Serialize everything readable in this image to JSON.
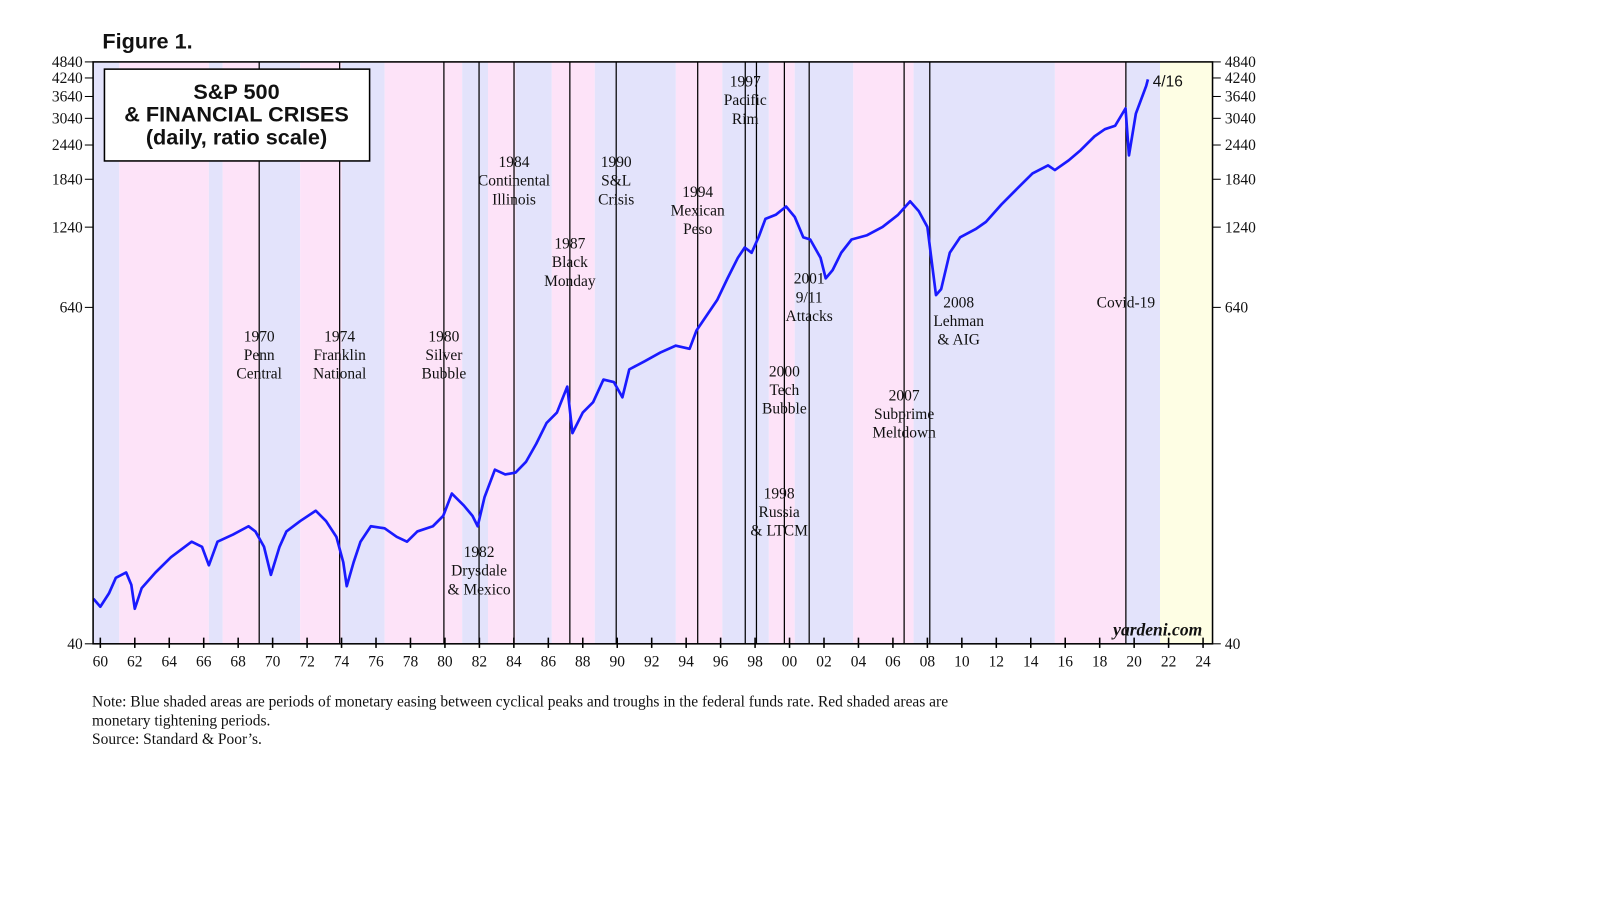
{
  "chart_data": {
    "type": "line",
    "figure_label": "Figure 1.",
    "title": [
      "S&P 500",
      "& FINANCIAL CRISES",
      "(daily, ratio scale)"
    ],
    "end_label": "4/16",
    "watermark": "yardeni.com",
    "note": [
      "Note: Blue shaded areas are periods of monetary easing between cyclical peaks and troughs in the federal funds rate. Red shaded areas are",
      "monetary tightening periods."
    ],
    "source": "Source: Standard & Poor’s.",
    "log_scale": true,
    "xlim": [
      1959.58,
      2024.55
    ],
    "ylim": [
      40,
      4840
    ],
    "yticks": [
      40,
      640,
      1240,
      1840,
      2440,
      3040,
      3640,
      4240,
      4840
    ],
    "xticks": [
      {
        "value": 1960,
        "label": "60"
      },
      {
        "value": 1962,
        "label": "62"
      },
      {
        "value": 1964,
        "label": "64"
      },
      {
        "value": 1966,
        "label": "66"
      },
      {
        "value": 1968,
        "label": "68"
      },
      {
        "value": 1970,
        "label": "70"
      },
      {
        "value": 1972,
        "label": "72"
      },
      {
        "value": 1974,
        "label": "74"
      },
      {
        "value": 1976,
        "label": "76"
      },
      {
        "value": 1978,
        "label": "78"
      },
      {
        "value": 1980,
        "label": "80"
      },
      {
        "value": 1982,
        "label": "82"
      },
      {
        "value": 1984,
        "label": "84"
      },
      {
        "value": 1986,
        "label": "86"
      },
      {
        "value": 1988,
        "label": "88"
      },
      {
        "value": 1990,
        "label": "90"
      },
      {
        "value": 1992,
        "label": "92"
      },
      {
        "value": 1994,
        "label": "94"
      },
      {
        "value": 1996,
        "label": "96"
      },
      {
        "value": 1998,
        "label": "98"
      },
      {
        "value": 2000,
        "label": "00"
      },
      {
        "value": 2002,
        "label": "02"
      },
      {
        "value": 2004,
        "label": "04"
      },
      {
        "value": 2006,
        "label": "06"
      },
      {
        "value": 2008,
        "label": "08"
      },
      {
        "value": 2010,
        "label": "10"
      },
      {
        "value": 2012,
        "label": "12"
      },
      {
        "value": 2014,
        "label": "14"
      },
      {
        "value": 2016,
        "label": "16"
      },
      {
        "value": 2018,
        "label": "18"
      },
      {
        "value": 2020,
        "label": "20"
      },
      {
        "value": 2022,
        "label": "22"
      },
      {
        "value": 2024,
        "label": "24"
      }
    ],
    "shading": [
      {
        "start": 1959.58,
        "end": 1961.1,
        "color": "#e3e3fb"
      },
      {
        "start": 1961.1,
        "end": 1966.3,
        "color": "#fde3f8"
      },
      {
        "start": 1966.3,
        "end": 1967.1,
        "color": "#e3e3fb"
      },
      {
        "start": 1967.1,
        "end": 1969.2,
        "color": "#fde3f8"
      },
      {
        "start": 1969.2,
        "end": 1971.6,
        "color": "#e3e3fb"
      },
      {
        "start": 1971.6,
        "end": 1974.0,
        "color": "#fde3f8"
      },
      {
        "start": 1974.0,
        "end": 1976.5,
        "color": "#e3e3fb"
      },
      {
        "start": 1976.5,
        "end": 1981.0,
        "color": "#fde3f8"
      },
      {
        "start": 1981.0,
        "end": 1982.5,
        "color": "#e3e3fb"
      },
      {
        "start": 1982.5,
        "end": 1984.1,
        "color": "#fde3f8"
      },
      {
        "start": 1984.1,
        "end": 1986.2,
        "color": "#e3e3fb"
      },
      {
        "start": 1986.2,
        "end": 1988.7,
        "color": "#fde3f8"
      },
      {
        "start": 1988.7,
        "end": 1993.4,
        "color": "#e3e3fb"
      },
      {
        "start": 1993.4,
        "end": 1996.1,
        "color": "#fde3f8"
      },
      {
        "start": 1996.1,
        "end": 1998.8,
        "color": "#e3e3fb"
      },
      {
        "start": 1998.8,
        "end": 2000.3,
        "color": "#fde3f8"
      },
      {
        "start": 2000.3,
        "end": 2003.7,
        "color": "#e3e3fb"
      },
      {
        "start": 2003.7,
        "end": 2007.2,
        "color": "#fde3f8"
      },
      {
        "start": 2007.2,
        "end": 2015.4,
        "color": "#e3e3fb"
      },
      {
        "start": 2015.4,
        "end": 2019.5,
        "color": "#fde3f8"
      },
      {
        "start": 2019.5,
        "end": 2021.5,
        "color": "#e3e3fb"
      },
      {
        "start": 2021.5,
        "end": 2024.55,
        "color": "#fefee4"
      }
    ],
    "annotations": [
      {
        "x": 1969.22,
        "text": [
          "1970",
          "Penn",
          "Central"
        ]
      },
      {
        "x": 1973.89,
        "text": [
          "1974",
          "Franklin",
          "National"
        ]
      },
      {
        "x": 1979.94,
        "text": [
          "1980",
          "Silver",
          "Bubble"
        ]
      },
      {
        "x": 1981.98,
        "text": [
          "1982",
          "Drysdale",
          "& Mexico"
        ]
      },
      {
        "x": 1984.01,
        "text": [
          "1984",
          "Continental",
          "Illinois"
        ]
      },
      {
        "x": 1987.25,
        "text": [
          "1987",
          "Black",
          "Monday"
        ]
      },
      {
        "x": 1989.94,
        "text": [
          "1990",
          "S&L",
          "Crisis"
        ]
      },
      {
        "x": 1994.67,
        "text": [
          "1994",
          "Mexican",
          "Peso"
        ]
      },
      {
        "x": 1997.43,
        "text": [
          "1997",
          "Pacific",
          "Rim"
        ]
      },
      {
        "x": 1998.08,
        "text": [
          "1998",
          "Russia",
          "& LTCM"
        ]
      },
      {
        "x": 1999.7,
        "text": [
          "2000",
          "Tech",
          "Bubble"
        ]
      },
      {
        "x": 2001.14,
        "text": [
          "2001",
          "9/11",
          "Attacks"
        ]
      },
      {
        "x": 2006.65,
        "text": [
          "2007",
          "Subprime",
          "Meltdown"
        ]
      },
      {
        "x": 2008.14,
        "text": [
          "2008",
          "Lehman",
          "& AIG"
        ]
      },
      {
        "x": 2019.52,
        "text": [
          "Covid-19"
        ]
      }
    ],
    "x": [
      1959.6,
      1960.0,
      1960.5,
      1960.9,
      1961.5,
      1961.8,
      1962.0,
      1962.4,
      1963.2,
      1964.1,
      1965.3,
      1965.9,
      1966.3,
      1966.8,
      1967.7,
      1968.6,
      1969.0,
      1969.5,
      1969.9,
      1970.4,
      1970.8,
      1971.6,
      1972.5,
      1973.1,
      1973.7,
      1974.1,
      1974.3,
      1974.7,
      1975.1,
      1975.7,
      1976.5,
      1977.2,
      1977.8,
      1978.4,
      1979.3,
      1979.9,
      1980.4,
      1981.1,
      1981.6,
      1981.9,
      1982.3,
      1982.9,
      1983.5,
      1984.1,
      1984.7,
      1985.3,
      1985.9,
      1986.5,
      1987.1,
      1987.4,
      1988.0,
      1988.6,
      1989.2,
      1989.8,
      1990.3,
      1990.7,
      1991.6,
      1992.5,
      1993.4,
      1994.2,
      1994.6,
      1995.2,
      1995.8,
      1996.4,
      1997.0,
      1997.4,
      1997.8,
      1998.2,
      1998.6,
      1999.2,
      1999.8,
      2000.3,
      2000.8,
      2001.2,
      2001.8,
      2002.1,
      2002.5,
      2003.0,
      2003.6,
      2004.5,
      2005.4,
      2006.3,
      2007.0,
      2007.5,
      2008.0,
      2008.3,
      2008.5,
      2008.8,
      2009.3,
      2009.9,
      2010.8,
      2011.4,
      2012.3,
      2013.2,
      2014.1,
      2015.0,
      2015.4,
      2016.2,
      2016.9,
      2017.7,
      2018.3,
      2018.9,
      2019.5,
      2019.7,
      2020.1,
      2020.7,
      2020.8
    ],
    "series": [
      {
        "color": "#1a1aff",
        "values": [
          58,
          54.3,
          60.6,
          68.9,
          72,
          65,
          53.4,
          63.3,
          72,
          81.7,
          92.8,
          89,
          76.4,
          92.8,
          98.4,
          105.4,
          101,
          89,
          70.6,
          89,
          101,
          110,
          119.8,
          110,
          96.6,
          78.3,
          64.3,
          78.3,
          92.8,
          105.4,
          103.6,
          96.6,
          92.8,
          101,
          105.4,
          114.8,
          138,
          125,
          114.8,
          105.4,
          134,
          168,
          161.5,
          164,
          179,
          208,
          247,
          269,
          333,
          227,
          269,
          293,
          353,
          346,
          305,
          384,
          411,
          441,
          467,
          455,
          529,
          600,
          680,
          813,
          963,
          1048,
          1004,
          1140,
          1327,
          1373,
          1470,
          1350,
          1140,
          1120,
          963,
          813,
          870,
          1004,
          1120,
          1160,
          1242,
          1373,
          1534,
          1415,
          1242,
          885,
          708,
          744,
          1004,
          1140,
          1220,
          1295,
          1495,
          1700,
          1930,
          2063,
          1985,
          2150,
          2340,
          2620,
          2780,
          2860,
          3300,
          2240,
          3160,
          3970,
          4190
        ]
      }
    ]
  }
}
